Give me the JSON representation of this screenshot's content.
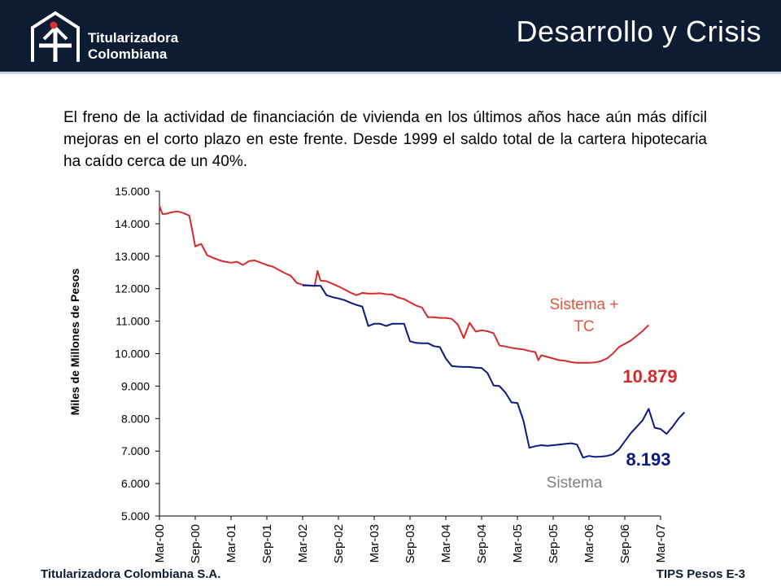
{
  "header": {
    "title": "Desarrollo y Crisis",
    "logo": {
      "line1": "Titularizadora",
      "line2": "Colombiana",
      "icon": "house-arrow-logo-icon"
    }
  },
  "body_text": "El freno de la actividad de financiación de vivienda en los últimos años hace aún más difícil mejoras en el corto plazo en este frente. Desde 1999 el saldo total de la cartera hipotecaria ha caído cerca de un 40%.",
  "footer": {
    "left": "Titularizadora Colombiana S.A.",
    "right": "TIPS Pesos E-3"
  },
  "colors": {
    "header_bg": "#0d1b33",
    "sistema_tc": "#d42a2a",
    "sistema": "#0a1a80",
    "label_tc": "#e0553a",
    "label_sistema": "#808080"
  },
  "chart_data": {
    "type": "line",
    "title": "",
    "xlabel": "",
    "ylabel": "Miles de Millones de Pesos",
    "ylim": [
      5000,
      15000
    ],
    "yticks": [
      "5.000",
      "6.000",
      "7.000",
      "8.000",
      "9.000",
      "10.000",
      "11.000",
      "12.000",
      "13.000",
      "14.000",
      "15.000"
    ],
    "ytick_values": [
      5000,
      6000,
      7000,
      8000,
      9000,
      10000,
      11000,
      12000,
      13000,
      14000,
      15000
    ],
    "xticks": [
      "Mar-00",
      "Sep-00",
      "Mar-01",
      "Sep-01",
      "Mar-02",
      "Sep-02",
      "Mar-03",
      "Sep-03",
      "Mar-04",
      "Sep-04",
      "Mar-05",
      "Sep-05",
      "Mar-06",
      "Sep-06",
      "Mar-07"
    ],
    "x_unit": "months since Mar-00",
    "grid": false,
    "series": [
      {
        "name": "Sistema + TC",
        "label_lines": [
          "Sistema +",
          "TC"
        ],
        "end_label": "10.879",
        "points": [
          [
            0,
            14550
          ],
          [
            0.5,
            14300
          ],
          [
            1,
            14300
          ],
          [
            2,
            14350
          ],
          [
            3,
            14380
          ],
          [
            4,
            14330
          ],
          [
            5,
            14250
          ],
          [
            5.5,
            13800
          ],
          [
            6,
            13300
          ],
          [
            7,
            13380
          ],
          [
            8,
            13030
          ],
          [
            9,
            12950
          ],
          [
            10,
            12880
          ],
          [
            11,
            12830
          ],
          [
            12,
            12800
          ],
          [
            13,
            12830
          ],
          [
            14,
            12730
          ],
          [
            15,
            12850
          ],
          [
            16,
            12870
          ],
          [
            17,
            12800
          ],
          [
            18,
            12730
          ],
          [
            19,
            12680
          ],
          [
            20,
            12580
          ],
          [
            21,
            12480
          ],
          [
            22,
            12400
          ],
          [
            23,
            12180
          ],
          [
            24,
            12120
          ],
          [
            25,
            12100
          ],
          [
            26,
            12080
          ],
          [
            26.5,
            12550
          ],
          [
            27,
            12250
          ],
          [
            28,
            12230
          ],
          [
            29,
            12150
          ],
          [
            30,
            12070
          ],
          [
            31,
            11980
          ],
          [
            32,
            11880
          ],
          [
            33,
            11800
          ],
          [
            34,
            11870
          ],
          [
            35,
            11850
          ],
          [
            36,
            11850
          ],
          [
            37,
            11860
          ],
          [
            38,
            11830
          ],
          [
            39,
            11820
          ],
          [
            40,
            11730
          ],
          [
            41,
            11680
          ],
          [
            42,
            11580
          ],
          [
            43,
            11480
          ],
          [
            44,
            11420
          ],
          [
            45,
            11120
          ],
          [
            46,
            11120
          ],
          [
            47,
            11100
          ],
          [
            48,
            11100
          ],
          [
            49,
            11070
          ],
          [
            50,
            10900
          ],
          [
            51,
            10480
          ],
          [
            52,
            10950
          ],
          [
            53,
            10680
          ],
          [
            54,
            10720
          ],
          [
            55,
            10690
          ],
          [
            56,
            10630
          ],
          [
            57,
            10250
          ],
          [
            58,
            10220
          ],
          [
            59,
            10180
          ],
          [
            60,
            10150
          ],
          [
            61,
            10130
          ],
          [
            62,
            10080
          ],
          [
            63,
            10050
          ],
          [
            63.5,
            9800
          ],
          [
            64,
            9950
          ],
          [
            65,
            9900
          ],
          [
            66,
            9850
          ],
          [
            67,
            9800
          ],
          [
            68,
            9780
          ],
          [
            69,
            9740
          ],
          [
            70,
            9720
          ],
          [
            71,
            9720
          ],
          [
            72,
            9720
          ],
          [
            73,
            9730
          ],
          [
            74,
            9770
          ],
          [
            75,
            9850
          ],
          [
            76,
            10000
          ],
          [
            77,
            10200
          ],
          [
            78,
            10300
          ],
          [
            79,
            10400
          ],
          [
            80,
            10550
          ],
          [
            81,
            10700
          ],
          [
            82,
            10879
          ]
        ]
      },
      {
        "name": "Sistema",
        "label_lines": [
          "Sistema"
        ],
        "end_label": "8.193",
        "points": [
          [
            24,
            12100
          ],
          [
            25,
            12100
          ],
          [
            26,
            12090
          ],
          [
            27,
            12090
          ],
          [
            28,
            11800
          ],
          [
            29,
            11740
          ],
          [
            30,
            11700
          ],
          [
            31,
            11650
          ],
          [
            32,
            11570
          ],
          [
            33,
            11500
          ],
          [
            34,
            11450
          ],
          [
            35,
            10850
          ],
          [
            36,
            10920
          ],
          [
            37,
            10920
          ],
          [
            38,
            10850
          ],
          [
            39,
            10920
          ],
          [
            40,
            10920
          ],
          [
            41,
            10920
          ],
          [
            42,
            10380
          ],
          [
            43,
            10330
          ],
          [
            44,
            10320
          ],
          [
            45,
            10320
          ],
          [
            46,
            10230
          ],
          [
            47,
            10200
          ],
          [
            48,
            9850
          ],
          [
            49,
            9620
          ],
          [
            50,
            9600
          ],
          [
            51,
            9590
          ],
          [
            52,
            9590
          ],
          [
            53,
            9570
          ],
          [
            54,
            9560
          ],
          [
            55,
            9400
          ],
          [
            56,
            9020
          ],
          [
            57,
            9000
          ],
          [
            58,
            8800
          ],
          [
            59,
            8500
          ],
          [
            60,
            8480
          ],
          [
            61,
            7950
          ],
          [
            62,
            7100
          ],
          [
            63,
            7150
          ],
          [
            64,
            7180
          ],
          [
            65,
            7160
          ],
          [
            66,
            7180
          ],
          [
            67,
            7200
          ],
          [
            68,
            7220
          ],
          [
            69,
            7240
          ],
          [
            70,
            7200
          ],
          [
            71,
            6800
          ],
          [
            72,
            6850
          ],
          [
            73,
            6820
          ],
          [
            74,
            6830
          ],
          [
            75,
            6850
          ],
          [
            76,
            6900
          ],
          [
            77,
            7050
          ],
          [
            78,
            7300
          ],
          [
            79,
            7550
          ],
          [
            80,
            7750
          ],
          [
            81,
            7950
          ],
          [
            82,
            8300
          ],
          [
            83,
            7720
          ],
          [
            84,
            7680
          ],
          [
            85,
            7530
          ],
          [
            86,
            7750
          ],
          [
            87,
            8000
          ],
          [
            88,
            8193
          ]
        ]
      }
    ]
  }
}
